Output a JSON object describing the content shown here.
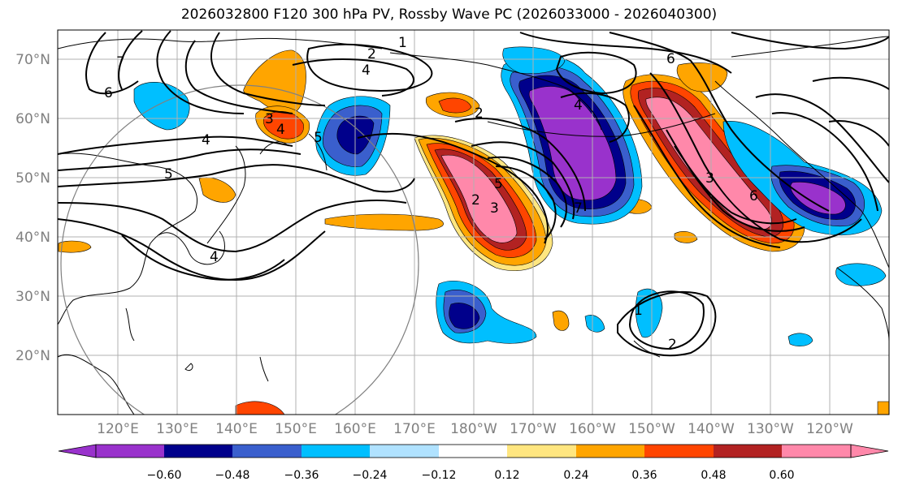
{
  "title": "2026032800 F120 300 hPa PV, Rossby Wave PC (2026033000 - 2026040300)",
  "lat_labels": [
    "70°N",
    "60°N",
    "50°N",
    "40°N",
    "30°N",
    "20°N"
  ],
  "lon_labels": [
    "120°E",
    "130°E",
    "140°E",
    "150°E",
    "160°E",
    "170°E",
    "180°W",
    "170°W",
    "160°W",
    "150°W",
    "140°W",
    "130°W",
    "120°W"
  ],
  "colorbar": {
    "tick_labels": [
      "−0.60",
      "−0.48",
      "−0.36",
      "−0.24",
      "−0.12",
      "0.12",
      "0.24",
      "0.36",
      "0.48",
      "0.60"
    ],
    "colors": [
      "#9932cc",
      "#00008b",
      "#3a5fcd",
      "#00bfff",
      "#b0e2ff",
      "#ffffff",
      "#ffe680",
      "#ffa500",
      "#ff4500",
      "#b22222",
      "#ff88aa"
    ]
  },
  "contour_labels": {
    "c1": "1",
    "c2": "2",
    "c3": "4",
    "c4": "6",
    "c5": "7",
    "c6": "4",
    "c7": "3",
    "c8": "4",
    "c9": "5",
    "c10": "5",
    "c11": "2",
    "c12": "5",
    "c13": "4",
    "c14": "2",
    "c15": "3",
    "c16": "4",
    "c17": "6",
    "c18": "3",
    "c19": "6",
    "c20": "1",
    "c21": "2",
    "c22": "7"
  }
}
